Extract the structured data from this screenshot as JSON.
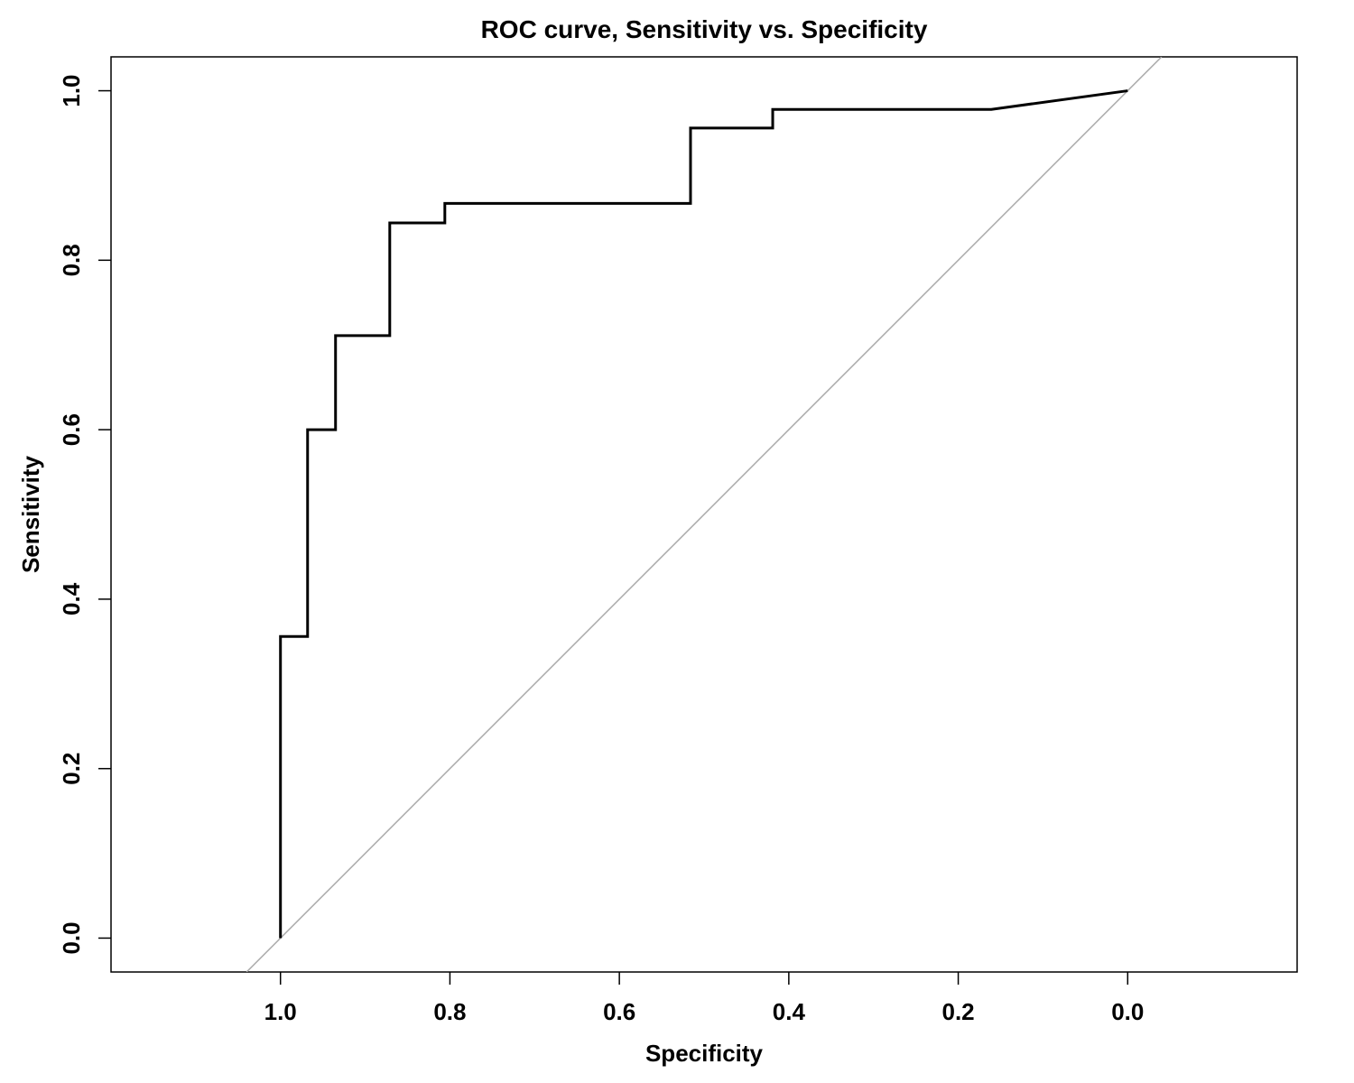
{
  "chart_data": {
    "type": "line",
    "title": "ROC curve, Sensitivity vs. Specificity",
    "xlabel": "Specificity",
    "ylabel": "Sensitivity",
    "x_reversed": true,
    "xlim": [
      1.2,
      -0.2
    ],
    "ylim": [
      -0.04,
      1.04
    ],
    "x_ticks": [
      "1.0",
      "0.8",
      "0.6",
      "0.4",
      "0.2",
      "0.0"
    ],
    "y_ticks": [
      "0.0",
      "0.2",
      "0.4",
      "0.6",
      "0.8",
      "1.0"
    ],
    "grid": false,
    "legend": "none",
    "colors": {
      "curve": "#000000",
      "reference": "#aaaaaa",
      "frame": "#000000"
    },
    "series": [
      {
        "specificity": [
          1.0,
          1.0,
          0.968,
          0.968,
          0.935,
          0.935,
          0.871,
          0.871,
          0.806,
          0.806,
          0.516,
          0.516,
          0.419,
          0.419,
          0.161,
          0.0
        ],
        "sensitivity": [
          0.0,
          0.356,
          0.356,
          0.6,
          0.6,
          0.711,
          0.711,
          0.844,
          0.844,
          0.867,
          0.867,
          0.956,
          0.956,
          0.978,
          0.978,
          1.0
        ]
      }
    ],
    "reference_line": {
      "specificity": [
        1.0,
        0.0
      ],
      "sensitivity": [
        0.0,
        1.0
      ]
    }
  }
}
